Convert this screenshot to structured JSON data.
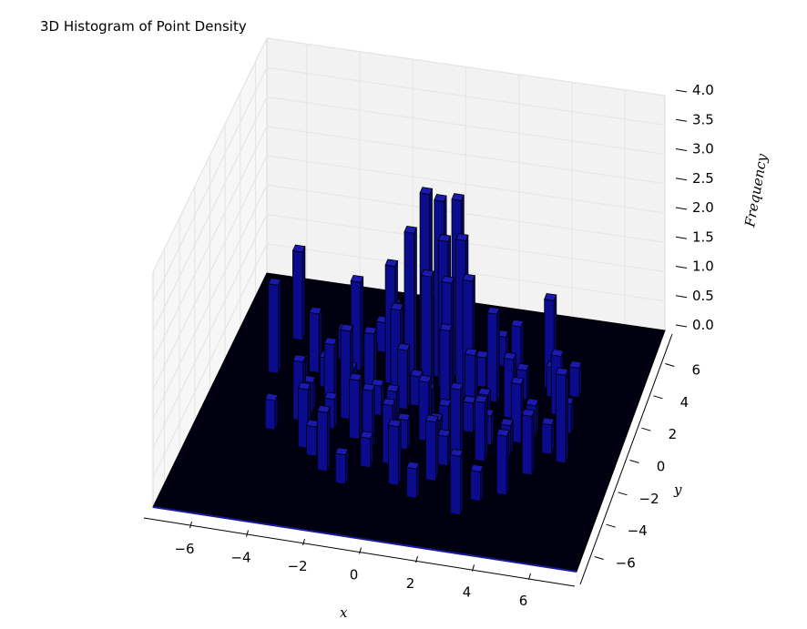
{
  "chart_data": {
    "type": "bar3d",
    "title": "3D Histogram of Point Density",
    "xlabel": "x",
    "ylabel": "y",
    "zlabel": "Frequency",
    "xlim": [
      -7.5,
      7.5
    ],
    "ylim": [
      -7.5,
      7.5
    ],
    "zlim": [
      0,
      4
    ],
    "x_ticks": [
      "−6",
      "−4",
      "−2",
      "0",
      "2",
      "4",
      "6"
    ],
    "y_ticks": [
      "−6",
      "−4",
      "−2",
      "0",
      "2",
      "4",
      "6"
    ],
    "z_ticks": [
      "0.0",
      "0.5",
      "1.0",
      "1.5",
      "2.0",
      "2.5",
      "3.0",
      "3.5",
      "4.0"
    ],
    "grid": true,
    "colors": {
      "bar": "#0a0a8c",
      "bar_edge": "#000000",
      "floor": "#000010"
    },
    "series": [
      {
        "values": [
          {
            "x": -0.6,
            "y": 3.1,
            "z": 3.0
          },
          {
            "x": 0.0,
            "y": 2.8,
            "z": 3.0
          },
          {
            "x": 0.6,
            "y": 3.0,
            "z": 3.0
          },
          {
            "x": -1.0,
            "y": 2.4,
            "z": 2.5
          },
          {
            "x": 0.3,
            "y": 2.2,
            "z": 2.5
          },
          {
            "x": 0.9,
            "y": 2.4,
            "z": 2.5
          },
          {
            "x": -1.6,
            "y": 2.0,
            "z": 2.0
          },
          {
            "x": 1.3,
            "y": 1.8,
            "z": 2.0
          },
          {
            "x": -0.2,
            "y": 1.7,
            "z": 2.0
          },
          {
            "x": 0.6,
            "y": 1.5,
            "z": 2.0
          },
          {
            "x": -1.2,
            "y": 1.2,
            "z": 1.5
          },
          {
            "x": 2.2,
            "y": 1.8,
            "z": 1.5
          },
          {
            "x": -3.0,
            "y": 2.5,
            "z": 1.5
          },
          {
            "x": -5.5,
            "y": 3.8,
            "z": 1.5
          },
          {
            "x": -5.8,
            "y": 1.6,
            "z": 1.5
          },
          {
            "x": 4.0,
            "y": 3.1,
            "z": 1.5
          },
          {
            "x": -2.6,
            "y": -0.5,
            "z": 1.5
          },
          {
            "x": 0.8,
            "y": 0.4,
            "z": 1.5
          },
          {
            "x": 5.4,
            "y": -1.2,
            "z": 1.5
          },
          {
            "x": 2.0,
            "y": -3.0,
            "z": 1.5
          },
          {
            "x": 2.5,
            "y": -5.2,
            "z": 1.0
          },
          {
            "x": -1.4,
            "y": -2.1,
            "z": 1.0
          },
          {
            "x": 0.4,
            "y": -1.1,
            "z": 1.0
          },
          {
            "x": -0.8,
            "y": 0.6,
            "z": 1.0
          },
          {
            "x": 1.6,
            "y": 0.9,
            "z": 1.0
          },
          {
            "x": -2.2,
            "y": 1.3,
            "z": 1.0
          },
          {
            "x": 3.0,
            "y": 1.0,
            "z": 1.0
          },
          {
            "x": -3.4,
            "y": 0.3,
            "z": 1.0
          },
          {
            "x": 3.6,
            "y": -0.4,
            "z": 1.0
          },
          {
            "x": -2.0,
            "y": -1.6,
            "z": 1.0
          },
          {
            "x": 2.6,
            "y": -1.8,
            "z": 1.0
          },
          {
            "x": -0.5,
            "y": -2.8,
            "z": 1.0
          },
          {
            "x": 1.2,
            "y": -3.4,
            "z": 1.0
          },
          {
            "x": -3.6,
            "y": -2.6,
            "z": 1.0
          },
          {
            "x": 4.4,
            "y": -2.2,
            "z": 1.0
          },
          {
            "x": -4.2,
            "y": -1.0,
            "z": 1.0
          },
          {
            "x": 4.6,
            "y": 1.6,
            "z": 1.0
          },
          {
            "x": -1.8,
            "y": 3.2,
            "z": 1.0
          },
          {
            "x": 2.8,
            "y": 3.0,
            "z": 1.0
          },
          {
            "x": -4.4,
            "y": 2.0,
            "z": 1.0
          },
          {
            "x": 0.0,
            "y": -4.0,
            "z": 1.0
          },
          {
            "x": -2.6,
            "y": -3.8,
            "z": 1.0
          },
          {
            "x": 3.8,
            "y": -3.6,
            "z": 1.0
          },
          {
            "x": -1.0,
            "y": -0.2,
            "z": 0.5
          },
          {
            "x": 0.2,
            "y": 0.2,
            "z": 0.5
          },
          {
            "x": 1.0,
            "y": -0.6,
            "z": 0.5
          },
          {
            "x": -1.6,
            "y": 0.0,
            "z": 0.5
          },
          {
            "x": 1.8,
            "y": -0.2,
            "z": 0.5
          },
          {
            "x": -0.2,
            "y": -1.8,
            "z": 0.5
          },
          {
            "x": 2.2,
            "y": 0.4,
            "z": 0.5
          },
          {
            "x": -2.8,
            "y": 0.8,
            "z": 0.5
          },
          {
            "x": 3.2,
            "y": 2.2,
            "z": 0.5
          },
          {
            "x": -3.0,
            "y": -1.2,
            "z": 0.5
          },
          {
            "x": 1.4,
            "y": -2.4,
            "z": 0.5
          },
          {
            "x": -1.2,
            "y": -3.2,
            "z": 0.5
          },
          {
            "x": 3.4,
            "y": -1.2,
            "z": 0.5
          },
          {
            "x": -3.8,
            "y": 1.2,
            "z": 0.5
          },
          {
            "x": 4.0,
            "y": 0.2,
            "z": 0.5
          },
          {
            "x": -4.0,
            "y": -0.4,
            "z": 0.5
          },
          {
            "x": 0.6,
            "y": 3.8,
            "z": 0.5
          },
          {
            "x": -0.6,
            "y": 4.2,
            "z": 0.5
          },
          {
            "x": 2.0,
            "y": 4.0,
            "z": 0.5
          },
          {
            "x": -2.4,
            "y": 3.8,
            "z": 0.5
          },
          {
            "x": 4.8,
            "y": -0.8,
            "z": 0.5
          },
          {
            "x": -4.6,
            "y": 0.8,
            "z": 0.5
          },
          {
            "x": 0.8,
            "y": -4.6,
            "z": 0.5
          },
          {
            "x": -1.8,
            "y": -4.4,
            "z": 0.5
          },
          {
            "x": 3.0,
            "y": -4.2,
            "z": 0.5
          },
          {
            "x": -3.2,
            "y": -3.0,
            "z": 0.5
          },
          {
            "x": 5.0,
            "y": 2.8,
            "z": 0.5
          },
          {
            "x": 5.2,
            "y": 0.6,
            "z": 0.5
          },
          {
            "x": -5.0,
            "y": -1.8,
            "z": 0.5
          },
          {
            "x": 1.6,
            "y": 2.6,
            "z": 0.5
          },
          {
            "x": -0.4,
            "y": 0.9,
            "z": 0.5
          },
          {
            "x": 0.9,
            "y": -1.5,
            "z": 0.5
          },
          {
            "x": 2.6,
            "y": -0.8,
            "z": 0.5
          },
          {
            "x": -2.4,
            "y": 2.2,
            "z": 0.5
          },
          {
            "x": -3.6,
            "y": 3.0,
            "z": 0.5
          },
          {
            "x": 4.2,
            "y": 2.6,
            "z": 0.5
          }
        ]
      }
    ]
  }
}
